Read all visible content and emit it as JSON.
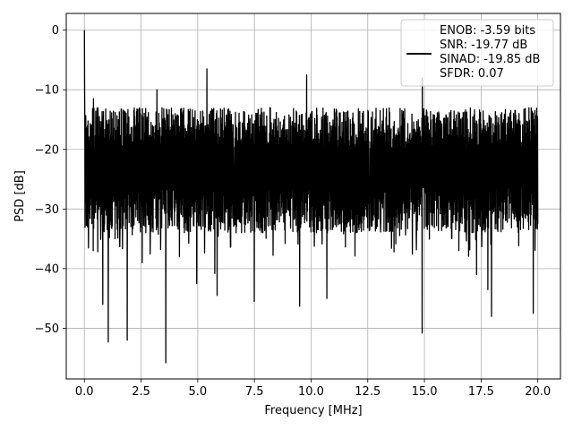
{
  "chart_data": {
    "type": "line",
    "title": "",
    "xlabel": "Frequency [MHz]",
    "ylabel": "PSD [dB]",
    "xlim": [
      -0.8,
      21.0
    ],
    "ylim": [
      -58.5,
      2.8
    ],
    "x_ticks": [
      0.0,
      2.5,
      5.0,
      7.5,
      10.0,
      12.5,
      15.0,
      17.5,
      20.0
    ],
    "x_tick_labels": [
      "0.0",
      "2.5",
      "5.0",
      "7.5",
      "10.0",
      "12.5",
      "15.0",
      "17.5",
      "20.0"
    ],
    "y_ticks": [
      0,
      -10,
      -20,
      -30,
      -40,
      -50
    ],
    "y_tick_labels": [
      "0",
      "−10",
      "−20",
      "−30",
      "−40",
      "−50"
    ],
    "grid": true,
    "legend_position": "top-right",
    "legend_lines": [
      "ENOB: -3.59 bits",
      "SNR: -19.77 dB",
      "SINAD: -19.85 dB",
      "SFDR: 0.07"
    ],
    "series": [
      {
        "color": "#000000",
        "x_range": [
          0.0,
          20.0
        ],
        "num_points": 2000,
        "start_peak": 0.0,
        "typical_band": [
          -12.0,
          -32.0
        ],
        "max_spikes": [
          {
            "x": 0.12,
            "y": -17.5
          },
          {
            "x": 0.25,
            "y": -24.5
          },
          {
            "x": 0.45,
            "y": -31.5
          },
          {
            "x": 0.4,
            "y": -11.5
          },
          {
            "x": 3.2,
            "y": -10.0
          },
          {
            "x": 5.4,
            "y": -6.5
          },
          {
            "x": 9.8,
            "y": -7.5
          },
          {
            "x": 14.9,
            "y": -8.0
          },
          {
            "x": 20.0,
            "y": -14.5
          }
        ],
        "min_spikes": [
          {
            "x": 0.4,
            "y": -37.0
          },
          {
            "x": 0.82,
            "y": -46.0
          },
          {
            "x": 1.05,
            "y": -52.3
          },
          {
            "x": 1.35,
            "y": -35.0
          },
          {
            "x": 1.9,
            "y": -52.0
          },
          {
            "x": 2.55,
            "y": -39.0
          },
          {
            "x": 3.6,
            "y": -55.8
          },
          {
            "x": 4.2,
            "y": -38.0
          },
          {
            "x": 4.95,
            "y": -42.5
          },
          {
            "x": 5.75,
            "y": -40.8
          },
          {
            "x": 5.85,
            "y": -44.5
          },
          {
            "x": 7.5,
            "y": -45.5
          },
          {
            "x": 9.5,
            "y": -46.3
          },
          {
            "x": 10.7,
            "y": -45.0
          },
          {
            "x": 14.9,
            "y": -50.8
          },
          {
            "x": 17.3,
            "y": -41.0
          },
          {
            "x": 17.8,
            "y": -43.5
          },
          {
            "x": 17.95,
            "y": -48.0
          },
          {
            "x": 19.8,
            "y": -47.5
          }
        ]
      }
    ]
  }
}
